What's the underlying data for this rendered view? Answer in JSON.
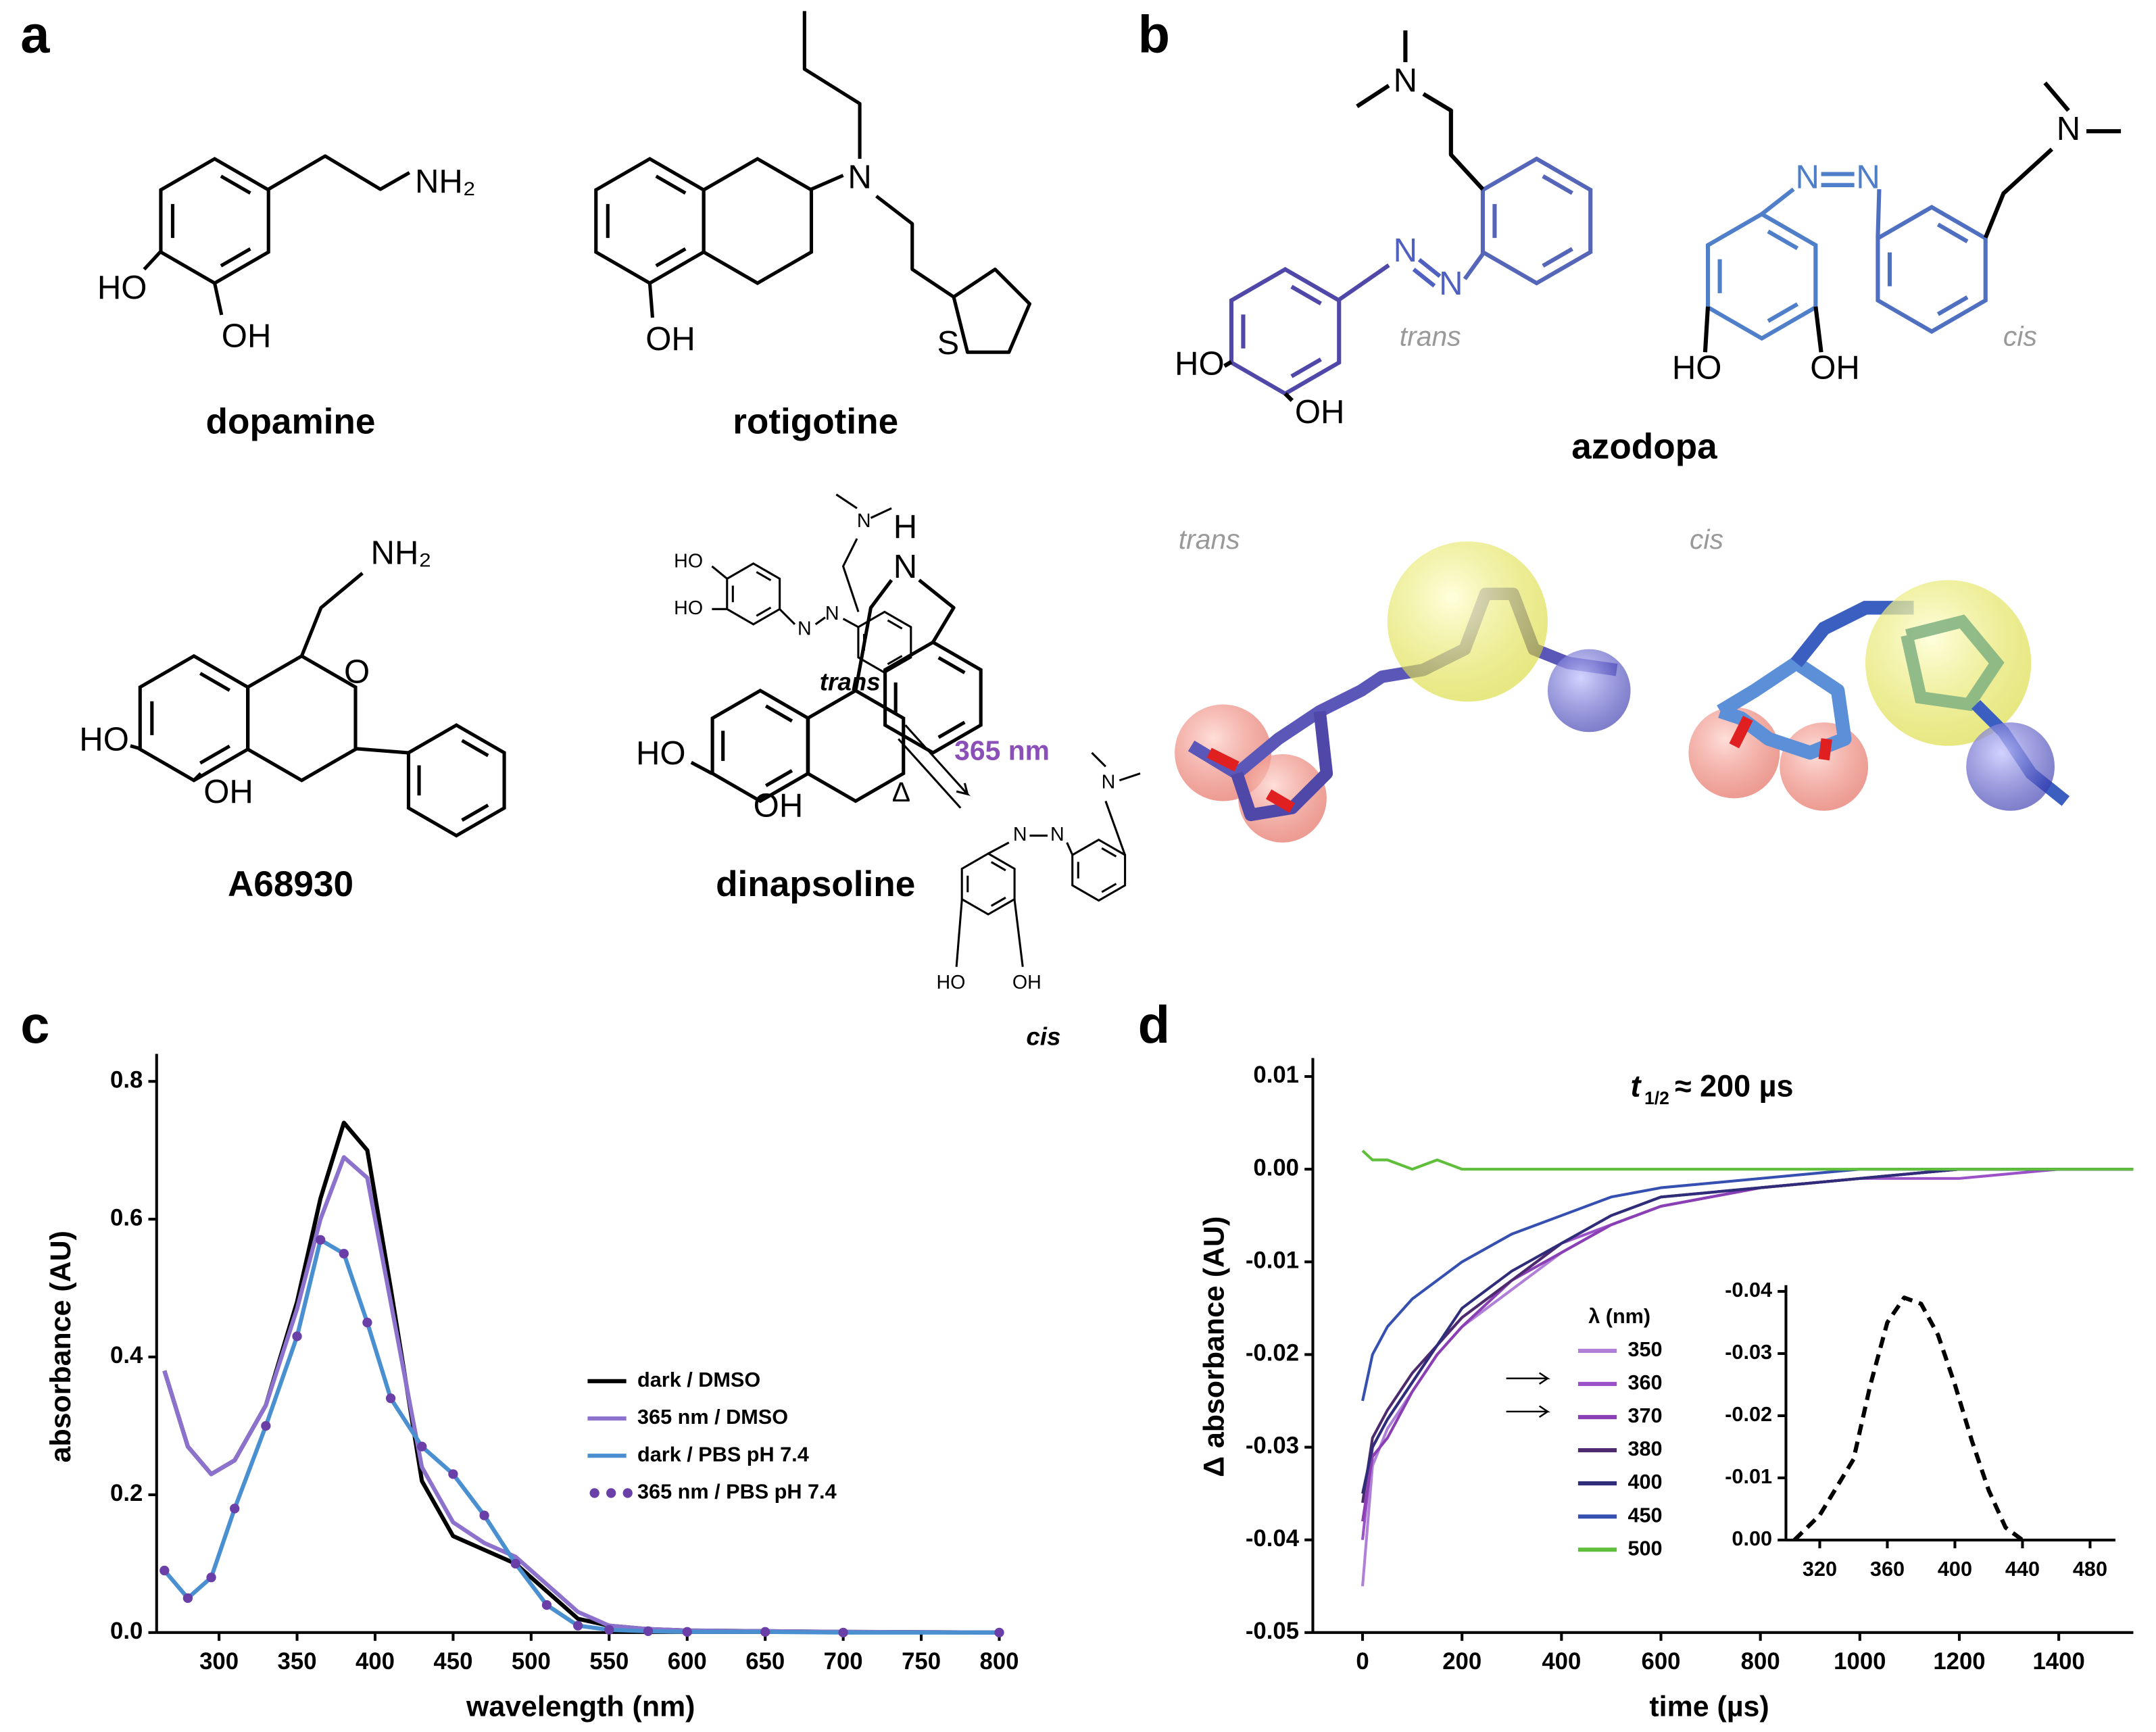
{
  "panel_labels": [
    "a",
    "b",
    "c",
    "d"
  ],
  "molecules": [
    {
      "name": "dopamine",
      "atoms": [
        "NH₂",
        "HO",
        "OH"
      ]
    },
    {
      "name": "rotigotine",
      "atoms": [
        "N",
        "OH",
        "S"
      ]
    },
    {
      "name": "A68930",
      "atoms": [
        "NH₂",
        "O",
        "HO",
        "OH"
      ]
    },
    {
      "name": "dinapsoline",
      "atoms": [
        "H",
        "N",
        "HO",
        "OH"
      ]
    }
  ],
  "azodopa": {
    "name": "azodopa",
    "trans": {
      "label": "trans",
      "atoms": [
        "N",
        "N",
        "N",
        "HO",
        "OH"
      ]
    },
    "cis": {
      "label": "cis",
      "atoms": [
        "N",
        "N",
        "N",
        "HO",
        "OH"
      ]
    },
    "model_labels": [
      "trans",
      "cis"
    ]
  },
  "chart_data": [
    {
      "type": "line",
      "xlabel": "wavelength (nm)",
      "ylabel": "absorbance (AU)",
      "x": [
        265,
        280,
        295,
        310,
        330,
        350,
        365,
        380,
        395,
        410,
        430,
        450,
        470,
        490,
        510,
        530,
        550,
        575,
        600,
        650,
        700,
        800
      ],
      "series": [
        {
          "name": "dark / DMSO",
          "color": "#000000",
          "values": [
            0.38,
            0.27,
            0.23,
            0.25,
            0.33,
            0.48,
            0.63,
            0.74,
            0.7,
            0.5,
            0.22,
            0.14,
            0.12,
            0.1,
            0.06,
            0.02,
            0.01,
            0.005,
            0.003,
            0.002,
            0.001,
            0
          ]
        },
        {
          "name": "365 nm / DMSO",
          "color": "#8c72cc",
          "values": [
            0.38,
            0.27,
            0.23,
            0.25,
            0.33,
            0.47,
            0.6,
            0.69,
            0.66,
            0.48,
            0.24,
            0.16,
            0.13,
            0.11,
            0.07,
            0.03,
            0.01,
            0.005,
            0.003,
            0.002,
            0.001,
            0
          ]
        },
        {
          "name": "dark / PBS pH 7.4",
          "color": "#4a90d0",
          "values": [
            0.09,
            0.05,
            0.08,
            0.18,
            0.3,
            0.43,
            0.57,
            0.55,
            0.45,
            0.34,
            0.27,
            0.23,
            0.17,
            0.1,
            0.04,
            0.01,
            0.004,
            0.002,
            0.001,
            0.001,
            0,
            0
          ]
        },
        {
          "name": "365 nm / PBS pH 7.4",
          "color": "#6a3fa8",
          "marker": "dots",
          "values": [
            0.09,
            0.05,
            0.08,
            0.18,
            0.3,
            0.43,
            0.57,
            0.55,
            0.45,
            0.34,
            0.27,
            0.23,
            0.17,
            0.1,
            0.04,
            0.01,
            0.004,
            0.002,
            0.001,
            0.001,
            0,
            0
          ]
        }
      ],
      "xlim": [
        260,
        800
      ],
      "ylim": [
        0,
        0.84
      ],
      "xticks": [
        300,
        350,
        400,
        450,
        500,
        550,
        600,
        650,
        700,
        750,
        800
      ],
      "yticks": [
        {
          "value": 0,
          "label": "0.0"
        },
        0.2,
        0.4,
        0.6,
        0.8
      ],
      "scheme": {
        "trans": {
          "label": "trans",
          "atoms": [
            "N",
            "HO",
            "HO",
            "N",
            "N"
          ]
        },
        "cis": {
          "label": "cis",
          "atoms": [
            "N",
            "N",
            "N",
            "HO",
            "OH"
          ]
        },
        "forward": "365 nm",
        "reverse": "Δ"
      }
    },
    {
      "type": "line",
      "xlabel": "time (µs)",
      "ylabel": "Δ absorbance (AU)",
      "annotation": {
        "symbol": "t",
        "subscript": "1/2",
        "text": "≈ 200 µs"
      },
      "legend_title": "λ (nm)",
      "x": [
        0,
        20,
        50,
        100,
        150,
        200,
        300,
        400,
        500,
        600,
        800,
        1000,
        1200,
        1400,
        1550
      ],
      "series": [
        {
          "name": "350",
          "color": "#b07fd8",
          "values": [
            -0.045,
            -0.032,
            -0.028,
            -0.024,
            -0.02,
            -0.017,
            -0.013,
            -0.009,
            -0.006,
            -0.004,
            -0.002,
            -0.001,
            0,
            0,
            0
          ]
        },
        {
          "name": "360",
          "color": "#9b52c8",
          "values": [
            -0.04,
            -0.03,
            -0.027,
            -0.023,
            -0.019,
            -0.016,
            -0.012,
            -0.008,
            -0.006,
            -0.004,
            -0.002,
            -0.001,
            -0.001,
            0,
            0
          ]
        },
        {
          "name": "370",
          "color": "#8a3fb5",
          "values": [
            -0.038,
            -0.031,
            -0.029,
            -0.024,
            -0.02,
            -0.017,
            -0.012,
            -0.009,
            -0.006,
            -0.004,
            -0.002,
            -0.001,
            0,
            0,
            0
          ]
        },
        {
          "name": "380",
          "color": "#4d2a6e",
          "values": [
            -0.036,
            -0.029,
            -0.026,
            -0.022,
            -0.019,
            -0.016,
            -0.012,
            -0.008,
            -0.005,
            -0.003,
            -0.002,
            -0.001,
            0,
            0,
            0
          ]
        },
        {
          "name": "400",
          "color": "#2f2c7a",
          "values": [
            -0.035,
            -0.03,
            -0.027,
            -0.023,
            -0.019,
            -0.015,
            -0.011,
            -0.008,
            -0.005,
            -0.003,
            -0.002,
            -0.001,
            0,
            0,
            0
          ]
        },
        {
          "name": "450",
          "color": "#3550b0",
          "values": [
            -0.025,
            -0.02,
            -0.017,
            -0.014,
            -0.012,
            -0.01,
            -0.007,
            -0.005,
            -0.003,
            -0.002,
            -0.001,
            0,
            0,
            0,
            0
          ]
        },
        {
          "name": "500",
          "color": "#5fbf3a",
          "values": [
            0.002,
            0.001,
            0.001,
            0,
            0.001,
            0,
            0,
            0,
            0,
            0,
            0,
            0,
            0,
            0,
            0
          ]
        }
      ],
      "xlim": [
        -100,
        1550
      ],
      "ylim": [
        -0.05,
        0.012
      ],
      "xticks": [
        0,
        200,
        400,
        600,
        800,
        1000,
        1200,
        1400
      ],
      "yticks": [
        0.01,
        {
          "value": 0,
          "label": "0.00"
        },
        -0.01,
        -0.02,
        -0.03,
        -0.04,
        -0.05
      ]
    },
    {
      "type": "line",
      "x": [
        305,
        320,
        340,
        350,
        360,
        370,
        380,
        390,
        400,
        410,
        420,
        430,
        440
      ],
      "series": [
        {
          "color": "#000000",
          "dash": true,
          "values": [
            0,
            -0.004,
            -0.013,
            -0.025,
            -0.035,
            -0.039,
            -0.038,
            -0.033,
            -0.025,
            -0.016,
            -0.008,
            -0.002,
            0
          ]
        }
      ],
      "xlim": [
        300,
        495
      ],
      "ylim": [
        0,
        -0.041
      ],
      "xticks": [
        320,
        360,
        400,
        440,
        480
      ],
      "yticks": [
        {
          "value": 0,
          "label": "0.00"
        },
        -0.01,
        -0.02,
        -0.03,
        -0.04
      ]
    }
  ]
}
